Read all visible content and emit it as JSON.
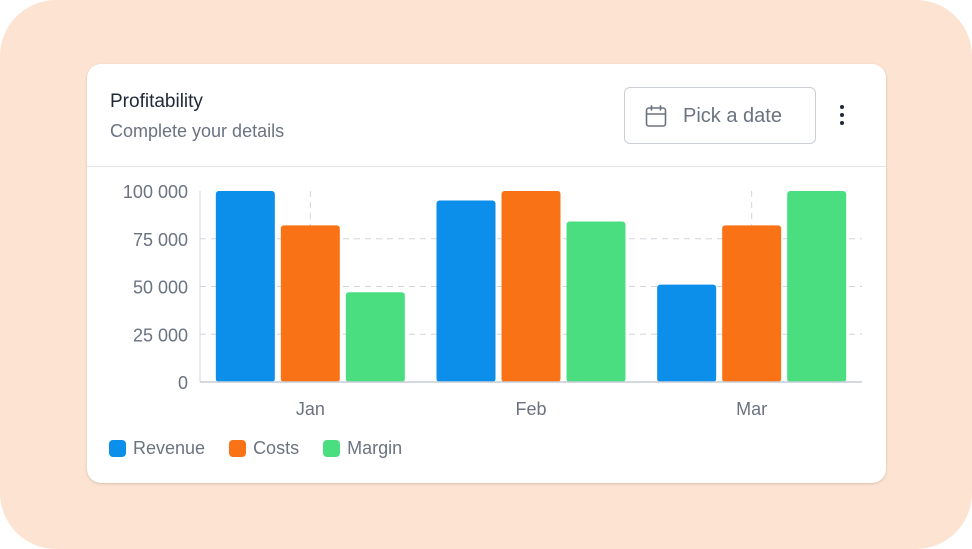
{
  "card": {
    "title": "Profitability",
    "subtitle": "Complete your details",
    "date_button_label": "Pick a date",
    "date_button_icon": "calendar-icon",
    "menu_icon": "kebab-menu-icon"
  },
  "colors": {
    "background": "#fde3d2",
    "revenue": "#0b8fea",
    "costs": "#f97316",
    "margin": "#4ade80",
    "grid": "#d1d5db",
    "axis_text": "#6b7280"
  },
  "chart_data": {
    "type": "bar",
    "categories": [
      "Jan",
      "Feb",
      "Mar"
    ],
    "series": [
      {
        "name": "Revenue",
        "color": "#0b8fea",
        "values": [
          100000,
          95000,
          51000
        ]
      },
      {
        "name": "Costs",
        "color": "#f97316",
        "values": [
          82000,
          100000,
          82000
        ]
      },
      {
        "name": "Margin",
        "color": "#4ade80",
        "values": [
          47000,
          84000,
          100000
        ]
      }
    ],
    "ylim": [
      0,
      100000
    ],
    "yticks": [
      0,
      25000,
      50000,
      75000,
      100000
    ],
    "ytick_labels": [
      "0",
      "25 000",
      "50 000",
      "75 000",
      "100 000"
    ],
    "grid": "dashed",
    "legend": "bottom-left",
    "title": "",
    "xlabel": "",
    "ylabel": ""
  }
}
